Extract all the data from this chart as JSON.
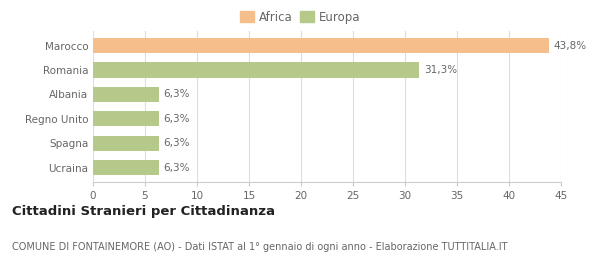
{
  "categories": [
    "Marocco",
    "Romania",
    "Albania",
    "Regno Unito",
    "Spagna",
    "Ucraina"
  ],
  "values": [
    43.8,
    31.3,
    6.3,
    6.3,
    6.3,
    6.3
  ],
  "colors": [
    "#f5be8a",
    "#b5c98a",
    "#b5c98a",
    "#b5c98a",
    "#b5c98a",
    "#b5c98a"
  ],
  "labels": [
    "43,8%",
    "31,3%",
    "6,3%",
    "6,3%",
    "6,3%",
    "6,3%"
  ],
  "legend": [
    {
      "label": "Africa",
      "color": "#f5be8a"
    },
    {
      "label": "Europa",
      "color": "#b5c98a"
    }
  ],
  "xlim": [
    0,
    45
  ],
  "xticks": [
    0,
    5,
    10,
    15,
    20,
    25,
    30,
    35,
    40,
    45
  ],
  "title": "Cittadini Stranieri per Cittadinanza",
  "subtitle": "COMUNE DI FONTAINEMORE (AO) - Dati ISTAT al 1° gennaio di ogni anno - Elaborazione TUTTITALIA.IT",
  "bg_color": "#ffffff",
  "bar_height": 0.62,
  "title_fontsize": 9.5,
  "subtitle_fontsize": 7.0,
  "label_fontsize": 7.5,
  "tick_fontsize": 7.5,
  "legend_fontsize": 8.5
}
